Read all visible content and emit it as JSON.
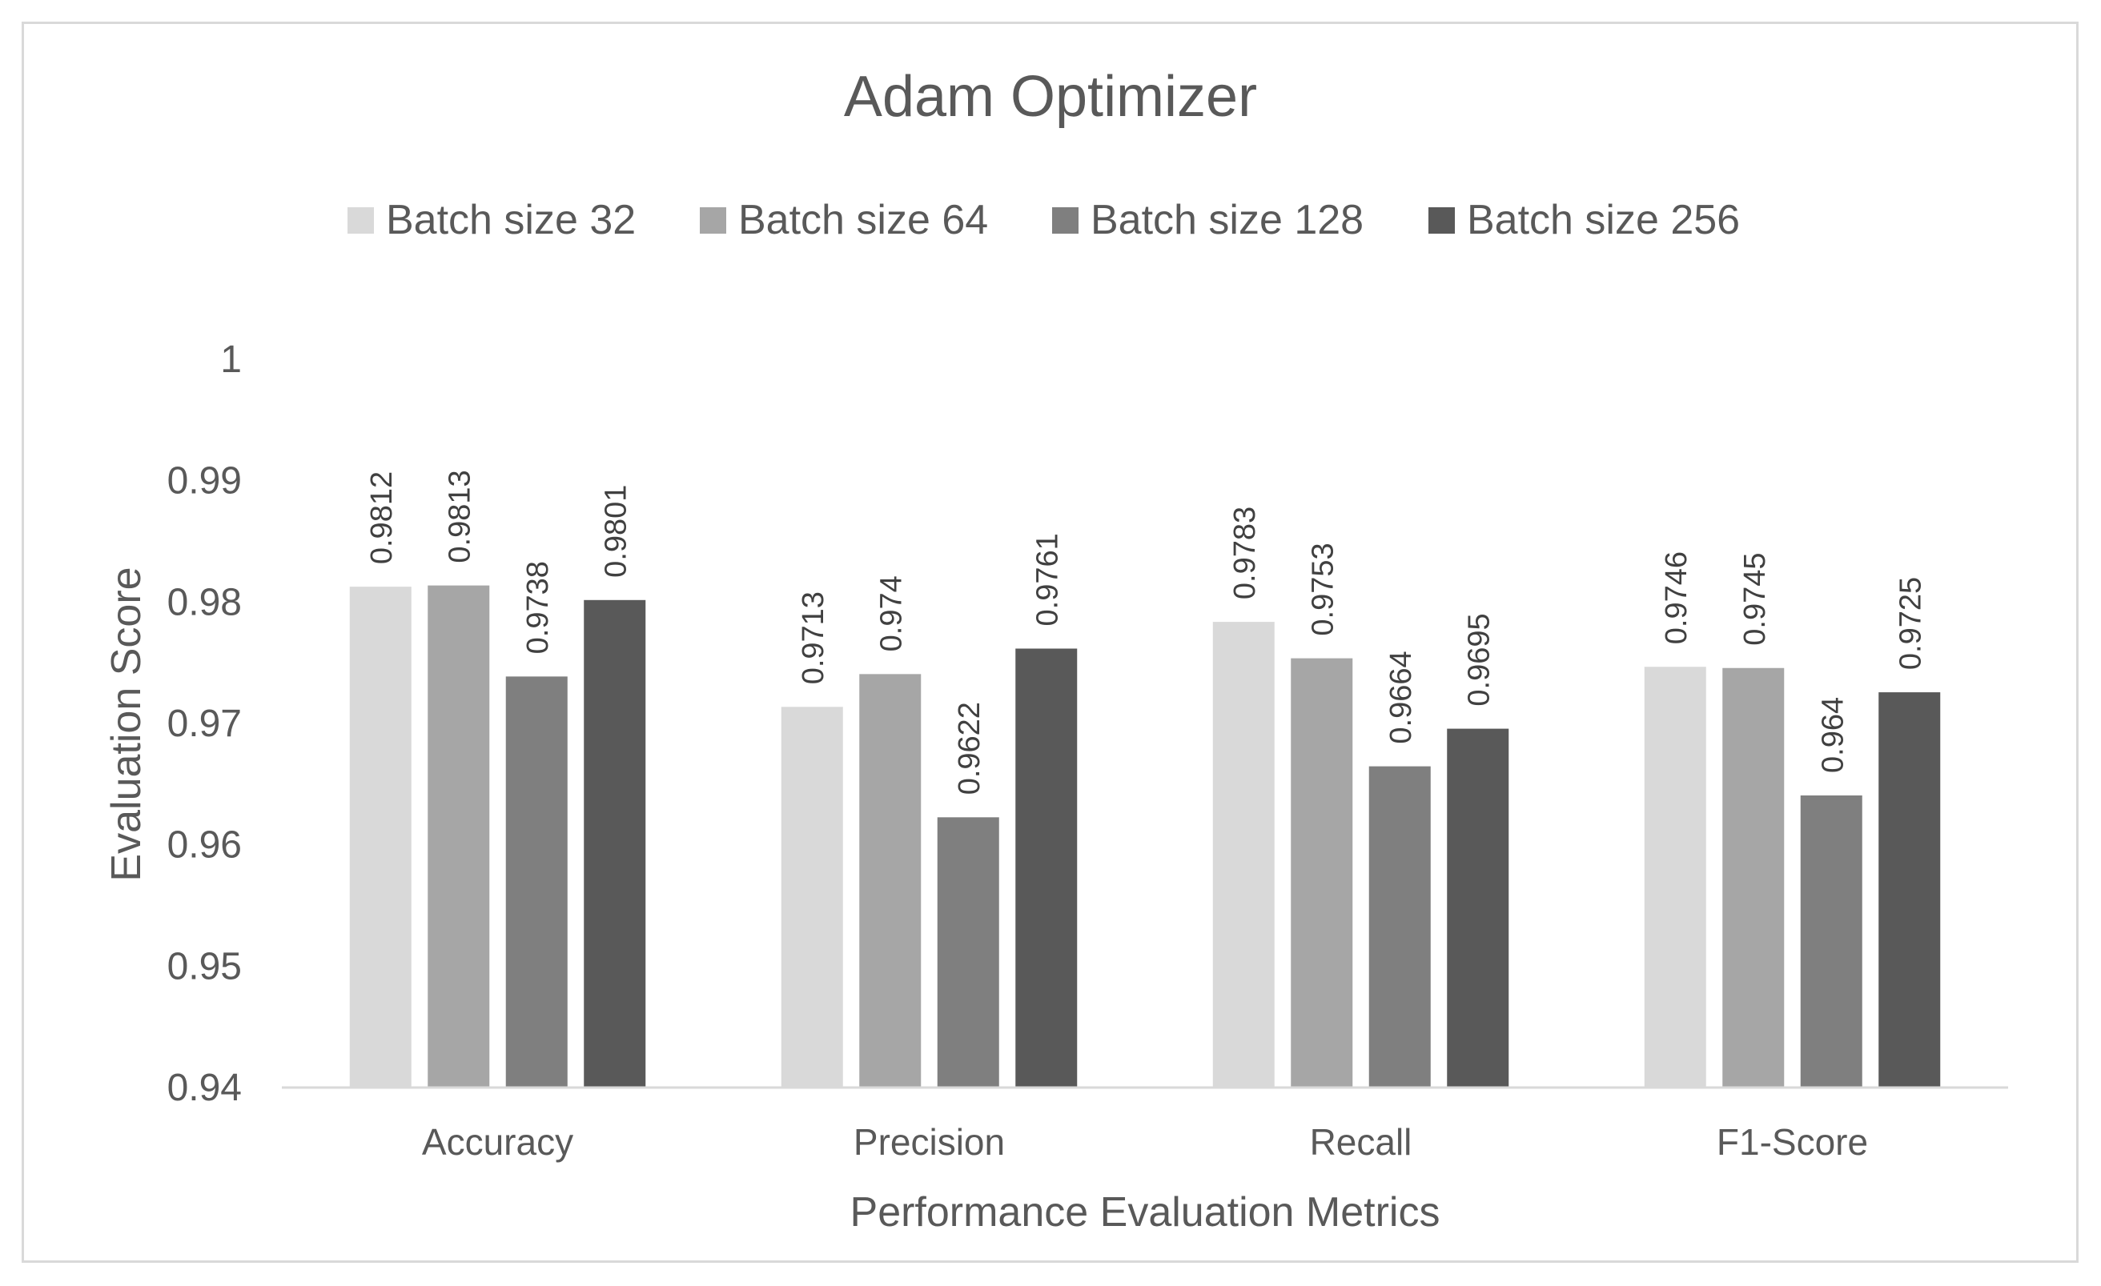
{
  "chart_data": {
    "type": "bar",
    "title": "Adam Optimizer",
    "xlabel": "Performance Evaluation Metrics",
    "ylabel": "Evaluation Score",
    "categories": [
      "Accuracy",
      "Precision",
      "Recall",
      "F1-Score"
    ],
    "series": [
      {
        "name": "Batch size 32",
        "color": "#d9d9d9",
        "values": [
          0.9812,
          0.9713,
          0.9783,
          0.9746
        ],
        "labels": [
          "0.9812",
          "0.9713",
          "0.9783",
          "0.9746"
        ]
      },
      {
        "name": "Batch size 64",
        "color": "#a6a6a6",
        "values": [
          0.9813,
          0.974,
          0.9753,
          0.9745
        ],
        "labels": [
          "0.9813",
          "0.974",
          "0.9753",
          "0.9745"
        ]
      },
      {
        "name": "Batch size 128",
        "color": "#7f7f7f",
        "values": [
          0.9738,
          0.9622,
          0.9664,
          0.964
        ],
        "labels": [
          "0.9738",
          "0.9622",
          "0.9664",
          "0.964"
        ]
      },
      {
        "name": "Batch size 256",
        "color": "#595959",
        "values": [
          0.9801,
          0.9761,
          0.9695,
          0.9725
        ],
        "labels": [
          "0.9801",
          "0.9761",
          "0.9695",
          "0.9725"
        ]
      }
    ],
    "ylim": [
      0.94,
      1
    ],
    "yticks": [
      "0.94",
      "0.95",
      "0.96",
      "0.97",
      "0.98",
      "0.99",
      "1"
    ],
    "grid": false,
    "legend": "top"
  }
}
